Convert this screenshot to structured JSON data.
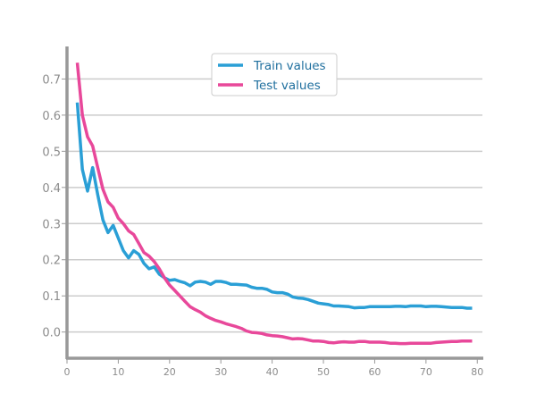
{
  "chart_data": {
    "type": "line",
    "xlim": [
      0,
      81
    ],
    "ylim": [
      -0.07,
      0.79
    ],
    "xticks": [
      0,
      10,
      20,
      30,
      40,
      50,
      60,
      70,
      80
    ],
    "yticks": [
      0.0,
      0.1,
      0.2,
      0.3,
      0.4,
      0.5,
      0.6,
      0.7
    ],
    "ytick_labels": [
      "0.0",
      "0.1",
      "0.2",
      "0.3",
      "0.4",
      "0.5",
      "0.6",
      "0.7"
    ],
    "xtick_labels": [
      "0",
      "10",
      "20",
      "30",
      "40",
      "50",
      "60",
      "70",
      "80"
    ],
    "grid": "horizontal",
    "legend": "top-center",
    "series": [
      {
        "name": "Train values",
        "color": "#2a9fd6",
        "x": [
          2,
          3,
          4,
          5,
          6,
          7,
          8,
          9,
          10,
          11,
          12,
          13,
          14,
          15,
          16,
          17,
          18,
          19,
          20,
          21,
          22,
          23,
          24,
          25,
          26,
          27,
          28,
          29,
          30,
          31,
          32,
          33,
          34,
          35,
          36,
          37,
          38,
          39,
          40,
          41,
          42,
          43,
          44,
          45,
          46,
          47,
          48,
          49,
          50,
          51,
          52,
          53,
          54,
          55,
          56,
          57,
          58,
          59,
          60,
          61,
          62,
          63,
          64,
          65,
          66,
          67,
          68,
          69,
          70,
          71,
          72,
          73,
          74,
          75,
          76,
          77,
          78,
          79
        ],
        "values": [
          0.635,
          0.45,
          0.39,
          0.455,
          0.38,
          0.31,
          0.275,
          0.295,
          0.26,
          0.225,
          0.205,
          0.225,
          0.215,
          0.19,
          0.175,
          0.18,
          0.16,
          0.15,
          0.143,
          0.145,
          0.14,
          0.136,
          0.128,
          0.138,
          0.14,
          0.138,
          0.132,
          0.14,
          0.14,
          0.137,
          0.132,
          0.132,
          0.131,
          0.13,
          0.124,
          0.121,
          0.121,
          0.118,
          0.111,
          0.109,
          0.109,
          0.105,
          0.097,
          0.094,
          0.093,
          0.09,
          0.085,
          0.08,
          0.078,
          0.076,
          0.072,
          0.072,
          0.071,
          0.07,
          0.067,
          0.068,
          0.068,
          0.07,
          0.07,
          0.07,
          0.07,
          0.07,
          0.071,
          0.071,
          0.07,
          0.072,
          0.072,
          0.072,
          0.07,
          0.071,
          0.071,
          0.07,
          0.069,
          0.068,
          0.068,
          0.068,
          0.066,
          0.066
        ]
      },
      {
        "name": "Test values",
        "color": "#e8489a",
        "x": [
          2,
          3,
          4,
          5,
          6,
          7,
          8,
          9,
          10,
          11,
          12,
          13,
          14,
          15,
          16,
          17,
          18,
          19,
          20,
          21,
          22,
          23,
          24,
          25,
          26,
          27,
          28,
          29,
          30,
          31,
          32,
          33,
          34,
          35,
          36,
          37,
          38,
          39,
          40,
          41,
          42,
          43,
          44,
          45,
          46,
          47,
          48,
          49,
          50,
          51,
          52,
          53,
          54,
          55,
          56,
          57,
          58,
          59,
          60,
          61,
          62,
          63,
          64,
          65,
          66,
          67,
          68,
          69,
          70,
          71,
          72,
          73,
          74,
          75,
          76,
          77,
          78,
          79
        ],
        "values": [
          0.745,
          0.6,
          0.54,
          0.515,
          0.455,
          0.395,
          0.36,
          0.345,
          0.315,
          0.3,
          0.28,
          0.27,
          0.245,
          0.22,
          0.21,
          0.195,
          0.175,
          0.15,
          0.13,
          0.115,
          0.1,
          0.085,
          0.07,
          0.062,
          0.055,
          0.045,
          0.038,
          0.032,
          0.028,
          0.023,
          0.019,
          0.015,
          0.01,
          0.003,
          -0.001,
          -0.002,
          -0.004,
          -0.008,
          -0.01,
          -0.011,
          -0.013,
          -0.016,
          -0.019,
          -0.018,
          -0.019,
          -0.022,
          -0.025,
          -0.025,
          -0.026,
          -0.029,
          -0.03,
          -0.028,
          -0.027,
          -0.028,
          -0.028,
          -0.026,
          -0.026,
          -0.028,
          -0.028,
          -0.028,
          -0.029,
          -0.031,
          -0.031,
          -0.032,
          -0.032,
          -0.031,
          -0.031,
          -0.031,
          -0.031,
          -0.031,
          -0.029,
          -0.028,
          -0.027,
          -0.026,
          -0.026,
          -0.025,
          -0.025,
          -0.025
        ]
      }
    ]
  }
}
